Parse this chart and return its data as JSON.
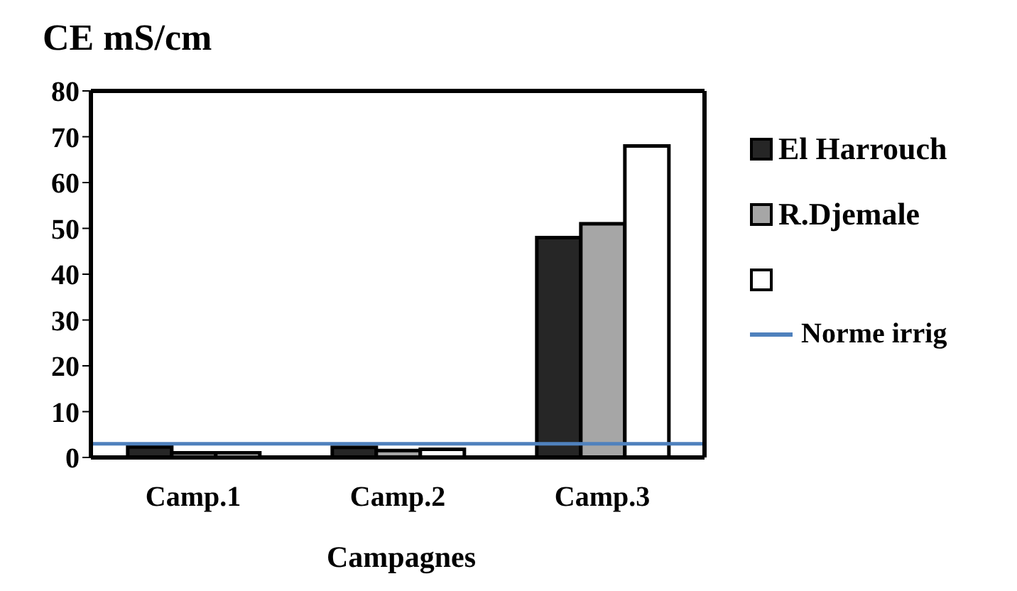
{
  "chart_data": {
    "type": "bar",
    "title": "CE mS/cm",
    "xlabel": "Campagnes",
    "categories": [
      "Camp.1",
      "Camp.2",
      "Camp.3"
    ],
    "series": [
      {
        "name": "El Harrouch",
        "color": "#262626",
        "values": [
          2.3,
          2.2,
          48
        ]
      },
      {
        "name": "R.Djemale",
        "color": "#a6a6a6",
        "values": [
          1.0,
          1.5,
          51
        ]
      },
      {
        "color": "#ffffff",
        "values": [
          1.0,
          1.8,
          68
        ]
      }
    ],
    "ylim": [
      0,
      80
    ],
    "yticks": [
      0,
      10,
      20,
      30,
      40,
      50,
      60,
      70,
      80
    ],
    "grid": false,
    "legend": "right",
    "ref_lines": [
      {
        "axis": "y",
        "value": 3,
        "label": "Norme irrig",
        "color": "#4f81bd"
      }
    ]
  }
}
